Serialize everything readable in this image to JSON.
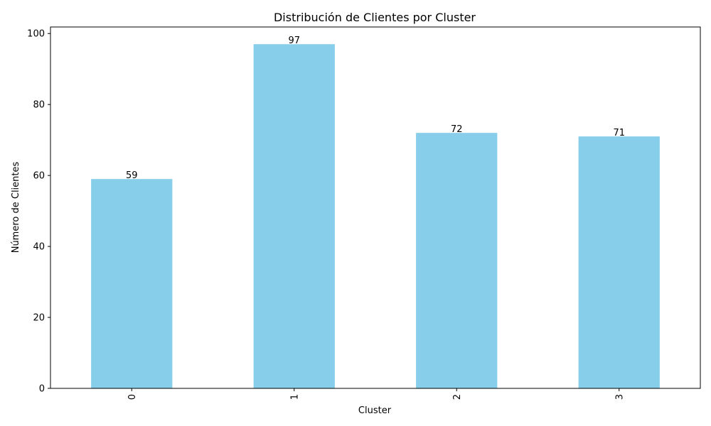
{
  "chart_data": {
    "type": "bar",
    "title": "Distribución de Clientes por Cluster",
    "xlabel": "Cluster",
    "ylabel": "Número de Clientes",
    "categories": [
      "0",
      "1",
      "2",
      "3"
    ],
    "values": [
      59,
      97,
      72,
      71
    ],
    "data_labels": [
      "59",
      "97",
      "72",
      "71"
    ],
    "ylim": [
      0,
      101.85
    ],
    "yticks": [
      0,
      20,
      40,
      60,
      80,
      100
    ],
    "ytick_labels": [
      "0",
      "20",
      "40",
      "60",
      "80",
      "100"
    ],
    "grid": false,
    "legend": "none",
    "bar_color": "#87ceeb",
    "x_tick_rotation": "vertical"
  }
}
